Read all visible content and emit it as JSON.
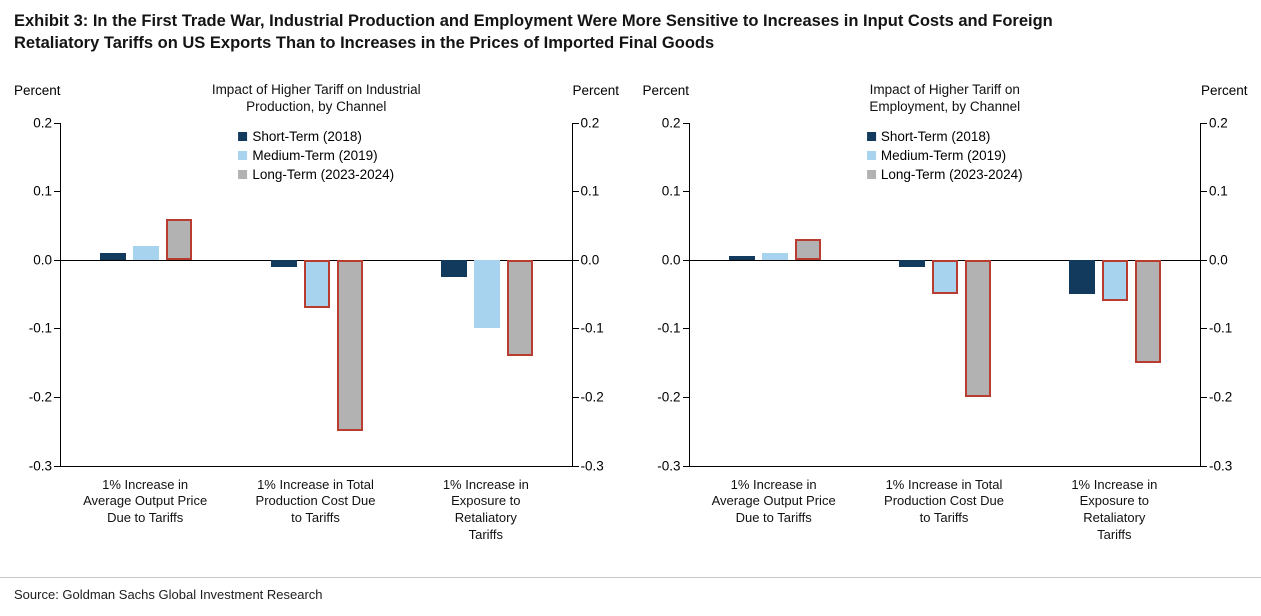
{
  "exhibit_title": {
    "line1": "Exhibit 3: In the First Trade War, Industrial Production and Employment Were More Sensitive to Increases in Input Costs and Foreign",
    "line2": "Retaliatory Tariffs on US Exports Than to Increases in the Prices of Imported Final Goods"
  },
  "source": "Source: Goldman Sachs Global Investment Research",
  "axis": {
    "label": "Percent"
  },
  "colors": {
    "short_term": "#123A5C",
    "medium_term": "#A8D3EE",
    "long_term": "#B2B2B2",
    "highlight_border": "#B83C30",
    "axis_line": "#000000",
    "divider": "#C9C9C9"
  },
  "legend": [
    {
      "label": "Short-Term (2018)",
      "color": "#123A5C"
    },
    {
      "label": "Medium-Term (2019)",
      "color": "#A8D3EE"
    },
    {
      "label": "Long-Term (2023-2024)",
      "color": "#B2B2B2"
    }
  ],
  "chart_data": [
    {
      "type": "bar",
      "title": "Impact of Higher Tariff on Industrial Production, by Channel",
      "title_lines": [
        "Impact of Higher Tariff on Industrial",
        "Production, by Channel"
      ],
      "ylabel": "Percent",
      "ylim": [
        -0.3,
        0.2
      ],
      "yticks": [
        "0.2",
        "0.1",
        "0.0",
        "-0.1",
        "-0.2",
        "-0.3"
      ],
      "grid": false,
      "legend_position": "top-center",
      "categories": [
        "1% Increase in Average Output Price Due to Tariffs",
        "1% Increase in Total Production Cost Due to Tariffs",
        "1% Increase in Exposure to Retaliatory Tariffs"
      ],
      "categories_lines": [
        [
          "1% Increase in",
          "Average Output Price",
          "Due to Tariffs"
        ],
        [
          "1% Increase in Total",
          "Production Cost Due",
          "to Tariffs"
        ],
        [
          "1% Increase in",
          "Exposure to",
          "Retaliatory Tariffs"
        ]
      ],
      "series": [
        {
          "name": "Short-Term (2018)",
          "values": [
            0.01,
            -0.01,
            -0.025
          ],
          "red_border": [
            false,
            false,
            false
          ]
        },
        {
          "name": "Medium-Term (2019)",
          "values": [
            0.02,
            -0.07,
            -0.1
          ],
          "red_border": [
            false,
            true,
            false
          ]
        },
        {
          "name": "Long-Term (2023-2024)",
          "values": [
            0.06,
            -0.25,
            -0.14
          ],
          "red_border": [
            true,
            true,
            true
          ]
        }
      ]
    },
    {
      "type": "bar",
      "title": "Impact of Higher Tariff on Employment, by Channel",
      "title_lines": [
        "Impact of Higher Tariff on",
        "Employment, by Channel"
      ],
      "ylabel": "Percent",
      "ylim": [
        -0.3,
        0.2
      ],
      "yticks": [
        "0.2",
        "0.1",
        "0.0",
        "-0.1",
        "-0.2",
        "-0.3"
      ],
      "grid": false,
      "legend_position": "top-center",
      "categories": [
        "1% Increase in Average Output Price Due to Tariffs",
        "1% Increase in Total Production Cost Due to Tariffs",
        "1% Increase in Exposure to Retaliatory Tariffs"
      ],
      "categories_lines": [
        [
          "1% Increase in",
          "Average Output Price",
          "Due to Tariffs"
        ],
        [
          "1% Increase in Total",
          "Production Cost Due",
          "to Tariffs"
        ],
        [
          "1% Increase in",
          "Exposure to",
          "Retaliatory Tariffs"
        ]
      ],
      "series": [
        {
          "name": "Short-Term (2018)",
          "values": [
            0.005,
            -0.01,
            -0.05
          ],
          "red_border": [
            false,
            false,
            false
          ]
        },
        {
          "name": "Medium-Term (2019)",
          "values": [
            0.01,
            -0.05,
            -0.06
          ],
          "red_border": [
            false,
            true,
            true
          ]
        },
        {
          "name": "Long-Term (2023-2024)",
          "values": [
            0.03,
            -0.2,
            -0.15
          ],
          "red_border": [
            true,
            true,
            true
          ]
        }
      ]
    }
  ]
}
